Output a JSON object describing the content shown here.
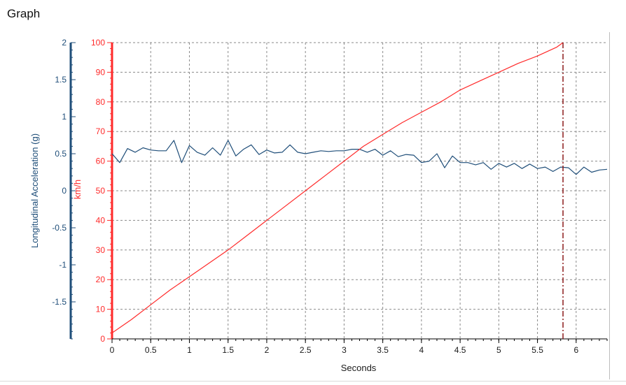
{
  "window": {
    "title": "Graph"
  },
  "chart_data": {
    "type": "line",
    "xlabel": "Seconds",
    "ylabel_left": "Longitudinal Acceleration (g)",
    "ylabel_right": "km/h",
    "xlim": [
      0,
      6.4
    ],
    "ylim_left": [
      -2,
      2
    ],
    "ylim_right": [
      0,
      100
    ],
    "x_ticks": [
      "0",
      "0.5",
      "1",
      "1.5",
      "2",
      "2.5",
      "3",
      "3.5",
      "4",
      "4.5",
      "5",
      "5.5",
      "6"
    ],
    "y_ticks_left": [
      "-1.5",
      "-1",
      "-0.5",
      "0",
      "0.5",
      "1",
      "1.5",
      "2"
    ],
    "y_ticks_right": [
      "0",
      "10",
      "20",
      "30",
      "40",
      "50",
      "60",
      "70",
      "80",
      "90",
      "100"
    ],
    "grid": true,
    "marker_x": 5.83,
    "colors": {
      "acceleration": "#1f4e79",
      "speed": "#ff2a2a",
      "marker": "#8b1a1a",
      "grid": "#8a8a8a"
    },
    "series": [
      {
        "axis": "left",
        "x": [
          0.0,
          0.1,
          0.2,
          0.3,
          0.4,
          0.5,
          0.6,
          0.7,
          0.8,
          0.9,
          1.0,
          1.1,
          1.2,
          1.3,
          1.4,
          1.5,
          1.6,
          1.7,
          1.8,
          1.9,
          2.0,
          2.1,
          2.2,
          2.3,
          2.4,
          2.5,
          2.6,
          2.7,
          2.8,
          2.9,
          3.0,
          3.1,
          3.2,
          3.3,
          3.4,
          3.5,
          3.6,
          3.7,
          3.8,
          3.9,
          4.0,
          4.1,
          4.2,
          4.3,
          4.4,
          4.5,
          4.6,
          4.7,
          4.8,
          4.9,
          5.0,
          5.1,
          5.2,
          5.3,
          5.4,
          5.5,
          5.6,
          5.7,
          5.8,
          5.9,
          6.0,
          6.1,
          6.2,
          6.3,
          6.4
        ],
        "values": [
          0.5,
          0.38,
          0.57,
          0.52,
          0.58,
          0.55,
          0.54,
          0.54,
          0.68,
          0.38,
          0.61,
          0.52,
          0.48,
          0.58,
          0.48,
          0.68,
          0.47,
          0.56,
          0.62,
          0.49,
          0.55,
          0.51,
          0.52,
          0.62,
          0.52,
          0.5,
          0.52,
          0.54,
          0.53,
          0.54,
          0.54,
          0.56,
          0.56,
          0.52,
          0.56,
          0.48,
          0.54,
          0.46,
          0.49,
          0.48,
          0.38,
          0.4,
          0.5,
          0.31,
          0.47,
          0.38,
          0.38,
          0.35,
          0.38,
          0.29,
          0.37,
          0.32,
          0.37,
          0.3,
          0.36,
          0.3,
          0.32,
          0.26,
          0.32,
          0.31,
          0.22,
          0.32,
          0.25,
          0.28,
          0.29
        ]
      },
      {
        "axis": "right",
        "x": [
          0.0,
          0.25,
          0.5,
          0.75,
          1.0,
          1.25,
          1.5,
          1.75,
          2.0,
          2.25,
          2.5,
          2.75,
          3.0,
          3.25,
          3.5,
          3.75,
          4.0,
          4.25,
          4.5,
          4.75,
          5.0,
          5.25,
          5.5,
          5.75,
          5.83
        ],
        "values": [
          2,
          6.5,
          11.5,
          16.5,
          21,
          25.5,
          30,
          35,
          40,
          45,
          50,
          55,
          60,
          65,
          69,
          73,
          76.5,
          80,
          84,
          87,
          90,
          93,
          95.5,
          98.5,
          100
        ]
      }
    ]
  }
}
